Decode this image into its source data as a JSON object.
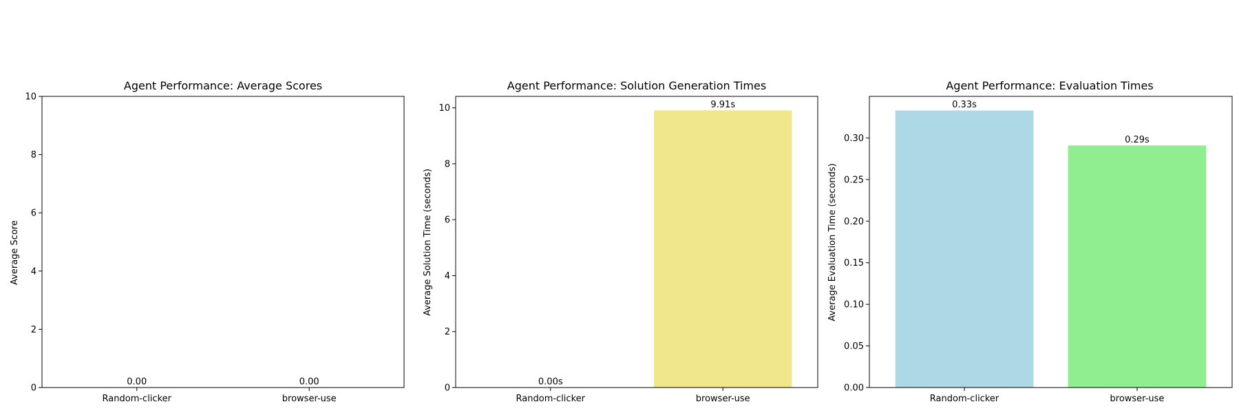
{
  "chart_data": [
    {
      "type": "bar",
      "title": "Agent Performance: Average Scores",
      "xlabel": "",
      "ylabel": "Average Score",
      "categories": [
        "Random-clicker",
        "browser-use"
      ],
      "values": [
        0.0,
        0.0
      ],
      "value_labels": [
        "0.00",
        "0.00"
      ],
      "colors": [
        "#fa8072",
        "#6495ed"
      ],
      "ylim": [
        0,
        10
      ],
      "yticks": [
        0,
        2,
        4,
        6,
        8,
        10
      ],
      "ytick_labels": [
        "0",
        "2",
        "4",
        "6",
        "8",
        "10"
      ],
      "grid": false
    },
    {
      "type": "bar",
      "title": "Agent Performance: Solution Generation Times",
      "xlabel": "",
      "ylabel": "Average Solution Time (seconds)",
      "categories": [
        "Random-clicker",
        "browser-use"
      ],
      "values": [
        0.0,
        9.91
      ],
      "value_labels": [
        "0.00s",
        "9.91s"
      ],
      "colors": [
        "#dda0dd",
        "#f0e68c"
      ],
      "ylim": [
        0,
        10.41
      ],
      "yticks": [
        0,
        2,
        4,
        6,
        8,
        10
      ],
      "ytick_labels": [
        "0",
        "2",
        "4",
        "6",
        "8",
        "10"
      ],
      "grid": false
    },
    {
      "type": "bar",
      "title": "Agent Performance: Evaluation Times",
      "xlabel": "",
      "ylabel": "Average Evaluation Time (seconds)",
      "categories": [
        "Random-clicker",
        "browser-use"
      ],
      "values": [
        0.333,
        0.291
      ],
      "value_labels": [
        "0.33s",
        "0.29s"
      ],
      "colors": [
        "#add8e6",
        "#90ee90"
      ],
      "ylim": [
        0,
        0.35
      ],
      "yticks": [
        0,
        0.05,
        0.1,
        0.15,
        0.2,
        0.25,
        0.3
      ],
      "ytick_labels": [
        "0.00",
        "0.05",
        "0.10",
        "0.15",
        "0.20",
        "0.25",
        "0.30"
      ],
      "grid": false
    }
  ]
}
